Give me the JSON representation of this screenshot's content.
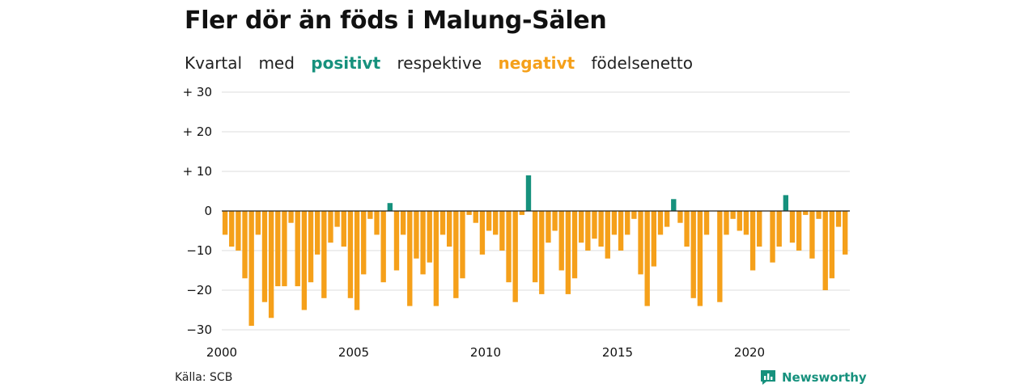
{
  "title": "Fler dör än föds i Malung-Sälen",
  "subtitle": {
    "w1": "Kvartal",
    "w2": "med",
    "positive": "positivt",
    "w3": "respektive",
    "negative": "negativt",
    "w4": "födelsenetto"
  },
  "source": "Källa: SCB",
  "brand": "Newsworthy",
  "colors": {
    "positive": "#16917d",
    "negative": "#f5a01a",
    "grid": "#dddddd",
    "axis": "#222222"
  },
  "chart_data": {
    "type": "bar",
    "xlabel": "",
    "ylabel": "",
    "ylim": [
      -30,
      30
    ],
    "yticks": [
      30,
      20,
      10,
      0,
      -10,
      -20,
      -30
    ],
    "ytick_labels": [
      "+ 30",
      "+ 20",
      "+ 10",
      "0",
      "−10",
      "−20",
      "−30"
    ],
    "xticks": [
      2000,
      2005,
      2010,
      2015,
      2020
    ],
    "x_start": 2000,
    "periods_per_year": 4,
    "grid": true,
    "legend": "none",
    "series": [
      {
        "values": [
          -6,
          -9,
          -10,
          -17,
          -29,
          -6,
          -23,
          -27,
          -19,
          -19,
          -3,
          -19,
          -25,
          -18,
          -11,
          -22,
          -8,
          -4,
          -9,
          -22,
          -25,
          -16,
          -2,
          -6,
          -18,
          2,
          -15,
          -6,
          -24,
          -12,
          -16,
          -13,
          -24,
          -6,
          -9,
          -22,
          -17,
          -1,
          -3,
          -11,
          -5,
          -6,
          -10,
          -18,
          -23,
          -1,
          9,
          -18,
          -21,
          -8,
          -5,
          -15,
          -21,
          -17,
          -8,
          -10,
          -7,
          -9,
          -12,
          -6,
          -10,
          -6,
          -2,
          -16,
          -24,
          -14,
          -6,
          -4,
          3,
          -3,
          -9,
          -22,
          -24,
          -6,
          0,
          -23,
          -6,
          -2,
          -5,
          -6,
          -15,
          -9,
          0,
          -13,
          -9,
          4,
          -8,
          -10,
          -1,
          -12,
          -2,
          -20,
          -17,
          -4,
          -11
        ]
      }
    ]
  }
}
